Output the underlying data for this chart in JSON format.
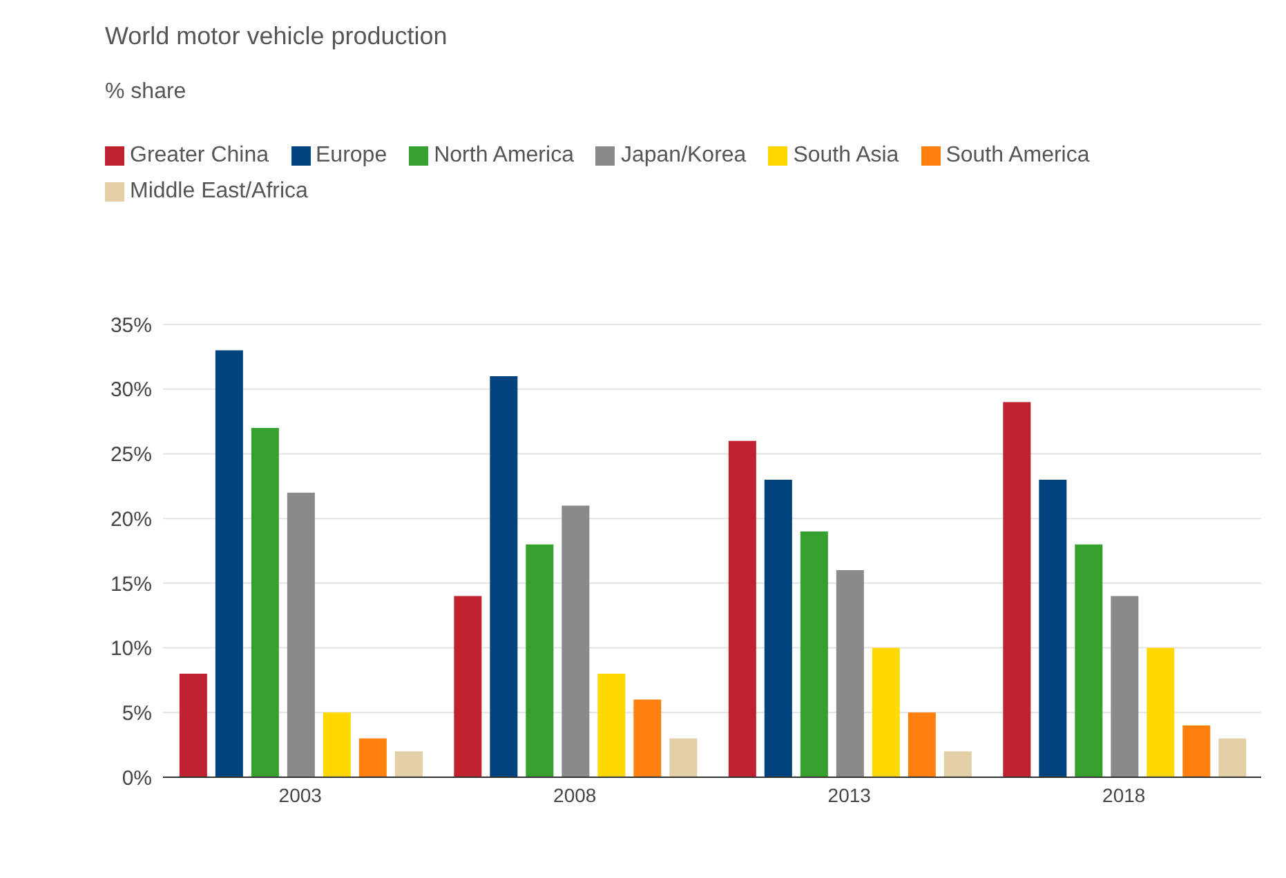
{
  "chart_data": {
    "type": "bar",
    "title": "World motor vehicle production",
    "subtitle": "% share",
    "categories": [
      "2003",
      "2008",
      "2013",
      "2018"
    ],
    "series": [
      {
        "name": "Greater China",
        "color": "#c0212f",
        "values": [
          8,
          14,
          26,
          29
        ]
      },
      {
        "name": "Europe",
        "color": "#00437e",
        "values": [
          33,
          31,
          23,
          23
        ]
      },
      {
        "name": "North America",
        "color": "#36a02f",
        "values": [
          27,
          18,
          19,
          18
        ]
      },
      {
        "name": "Japan/Korea",
        "color": "#8a8a8a",
        "values": [
          22,
          21,
          16,
          14
        ]
      },
      {
        "name": "South Asia",
        "color": "#ffd800",
        "values": [
          5,
          8,
          10,
          10
        ]
      },
      {
        "name": "South America",
        "color": "#ff7f0f",
        "values": [
          3,
          6,
          5,
          4
        ]
      },
      {
        "name": "Middle East/Africa",
        "color": "#e3cfa6",
        "values": [
          2,
          3,
          2,
          3
        ]
      }
    ],
    "ylim": [
      0,
      35
    ],
    "yticks": [
      {
        "value": 0,
        "label": "0%"
      },
      {
        "value": 5,
        "label": "5%"
      },
      {
        "value": 10,
        "label": "10%"
      },
      {
        "value": 15,
        "label": "15%"
      },
      {
        "value": 20,
        "label": "20%"
      },
      {
        "value": 25,
        "label": "25%"
      },
      {
        "value": 30,
        "label": "30%"
      },
      {
        "value": 35,
        "label": "35%"
      }
    ],
    "grid": "y",
    "legend": "top left"
  }
}
